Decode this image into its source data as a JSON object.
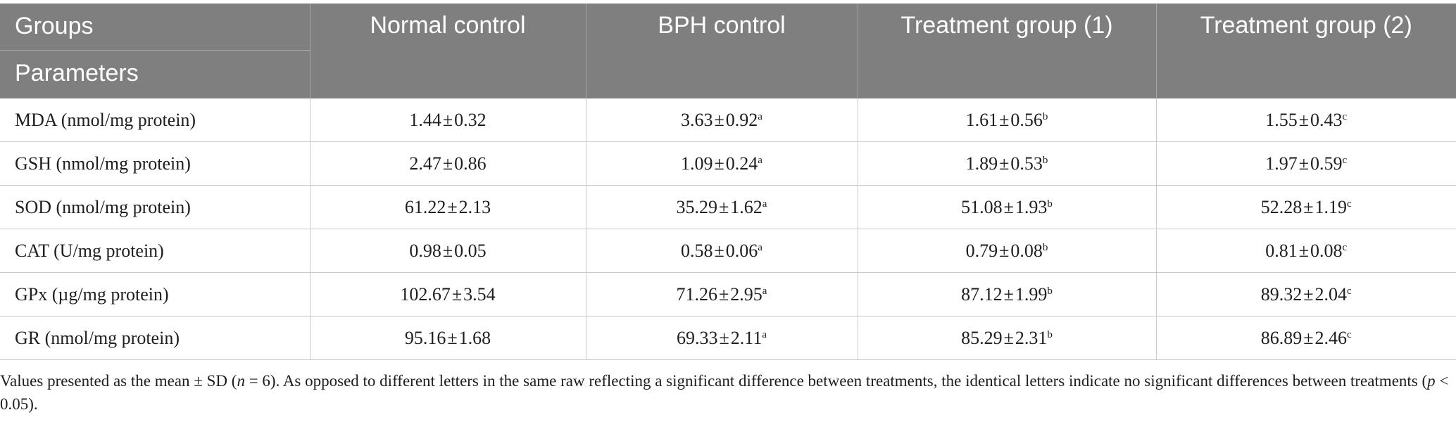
{
  "header": {
    "groups_label": "Groups",
    "parameters_label": "Parameters",
    "columns": [
      "Normal control",
      "BPH control",
      "Treatment group (1)",
      "Treatment group (2)"
    ]
  },
  "rows": [
    {
      "parameter": "MDA (nmol/mg protein)",
      "cells": [
        {
          "mean": "1.44",
          "sd": "0.32",
          "sup": ""
        },
        {
          "mean": "3.63",
          "sd": "0.92",
          "sup": "a"
        },
        {
          "mean": "1.61",
          "sd": "0.56",
          "sup": "b"
        },
        {
          "mean": "1.55",
          "sd": "0.43",
          "sup": "c"
        }
      ]
    },
    {
      "parameter": "GSH (nmol/mg protein)",
      "cells": [
        {
          "mean": "2.47",
          "sd": "0.86",
          "sup": ""
        },
        {
          "mean": "1.09",
          "sd": "0.24",
          "sup": "a"
        },
        {
          "mean": "1.89",
          "sd": "0.53",
          "sup": "b"
        },
        {
          "mean": "1.97",
          "sd": "0.59",
          "sup": "c"
        }
      ]
    },
    {
      "parameter": "SOD (nmol/mg protein)",
      "cells": [
        {
          "mean": "61.22",
          "sd": "2.13",
          "sup": ""
        },
        {
          "mean": "35.29",
          "sd": "1.62",
          "sup": "a"
        },
        {
          "mean": "51.08",
          "sd": "1.93",
          "sup": "b"
        },
        {
          "mean": "52.28",
          "sd": "1.19",
          "sup": "c"
        }
      ]
    },
    {
      "parameter": "CAT (U/mg protein)",
      "cells": [
        {
          "mean": "0.98",
          "sd": "0.05",
          "sup": ""
        },
        {
          "mean": "0.58",
          "sd": "0.06",
          "sup": "a"
        },
        {
          "mean": "0.79",
          "sd": "0.08",
          "sup": "b"
        },
        {
          "mean": "0.81",
          "sd": "0.08",
          "sup": "c"
        }
      ]
    },
    {
      "parameter": "GPx (µg/mg protein)",
      "cells": [
        {
          "mean": "102.67",
          "sd": "3.54",
          "sup": ""
        },
        {
          "mean": "71.26",
          "sd": "2.95",
          "sup": "a"
        },
        {
          "mean": "87.12",
          "sd": "1.99",
          "sup": "b"
        },
        {
          "mean": "89.32",
          "sd": "2.04",
          "sup": "c"
        }
      ]
    },
    {
      "parameter": "GR (nmol/mg protein)",
      "cells": [
        {
          "mean": "95.16",
          "sd": "1.68",
          "sup": ""
        },
        {
          "mean": "69.33",
          "sd": "2.11",
          "sup": "a"
        },
        {
          "mean": "85.29",
          "sd": "2.31",
          "sup": "b"
        },
        {
          "mean": "86.89",
          "sd": "2.46",
          "sup": "c"
        }
      ]
    }
  ],
  "symbols": {
    "plus_minus": "±"
  },
  "footnote": {
    "part1": "Values presented as the mean ± SD (",
    "n_symbol": "n",
    "part2": " = 6). As opposed to different letters in the same raw reflecting a significant difference between treatments, the identical letters indicate no significant differences between treatments (",
    "p_symbol": "p",
    "part3": " < 0.05)."
  }
}
